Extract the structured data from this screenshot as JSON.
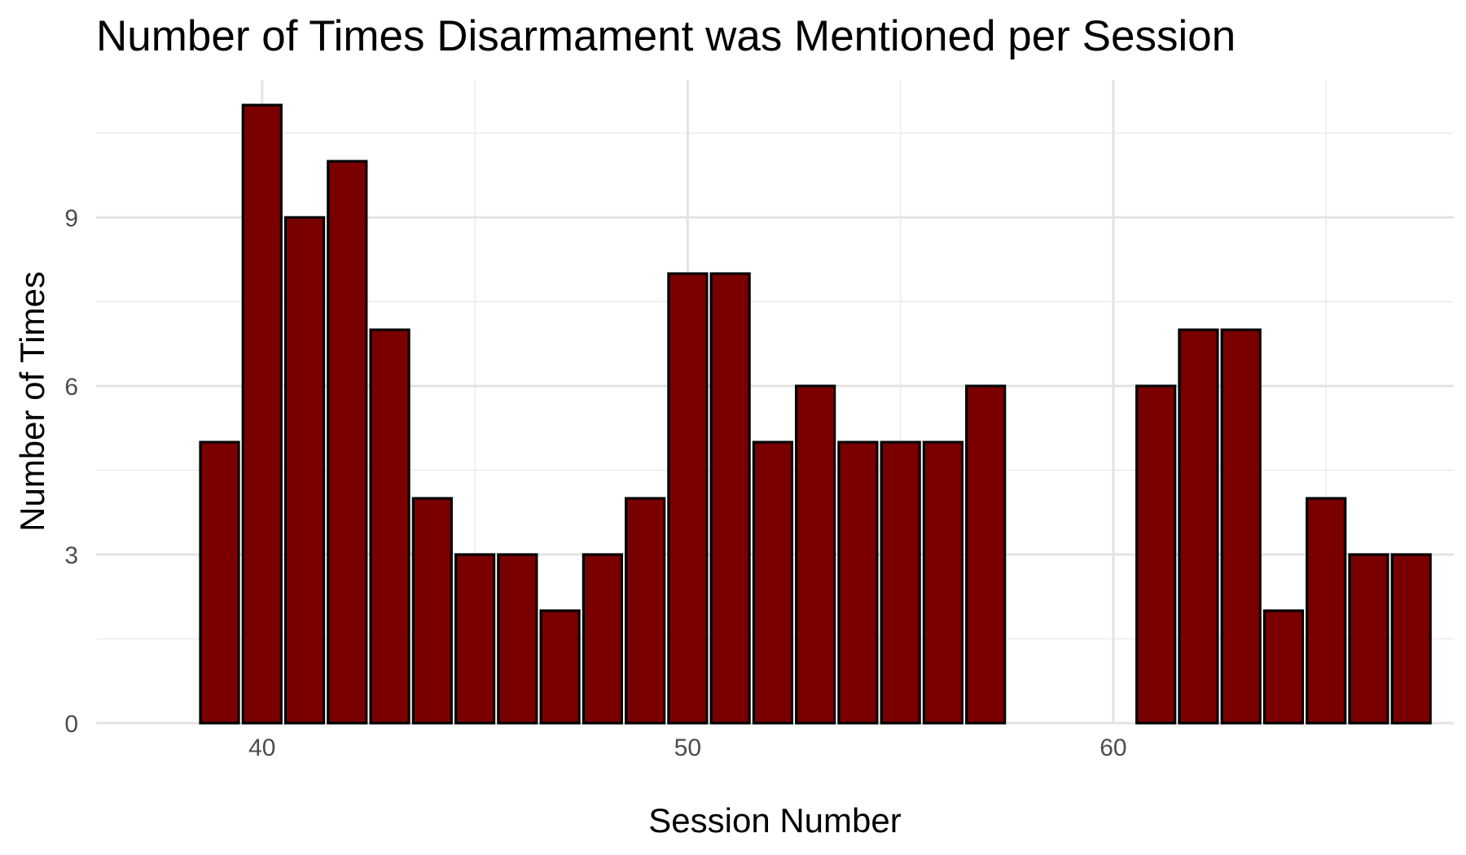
{
  "chart_data": {
    "type": "bar",
    "title": "Number of Times Disarmament was Mentioned per Session",
    "xlabel": "Session Number",
    "ylabel": "Number of Times",
    "x": [
      39,
      40,
      41,
      42,
      43,
      44,
      45,
      46,
      47,
      48,
      49,
      50,
      51,
      52,
      53,
      54,
      55,
      56,
      57,
      61,
      62,
      63,
      64,
      65,
      66,
      67
    ],
    "values": [
      5,
      11,
      9,
      10,
      7,
      4,
      3,
      3,
      2,
      3,
      4,
      8,
      8,
      5,
      6,
      5,
      5,
      5,
      6,
      6,
      7,
      7,
      2,
      4,
      3,
      3
    ],
    "x_ticks": [
      "40",
      "50",
      "60"
    ],
    "y_ticks": [
      "0",
      "3",
      "6",
      "9"
    ],
    "xlim": [
      36.1,
      68
    ],
    "ylim": [
      0,
      11.45
    ],
    "grid": true,
    "bar_fill": "#7a0000",
    "bar_stroke": "#000000",
    "legend": "none"
  }
}
